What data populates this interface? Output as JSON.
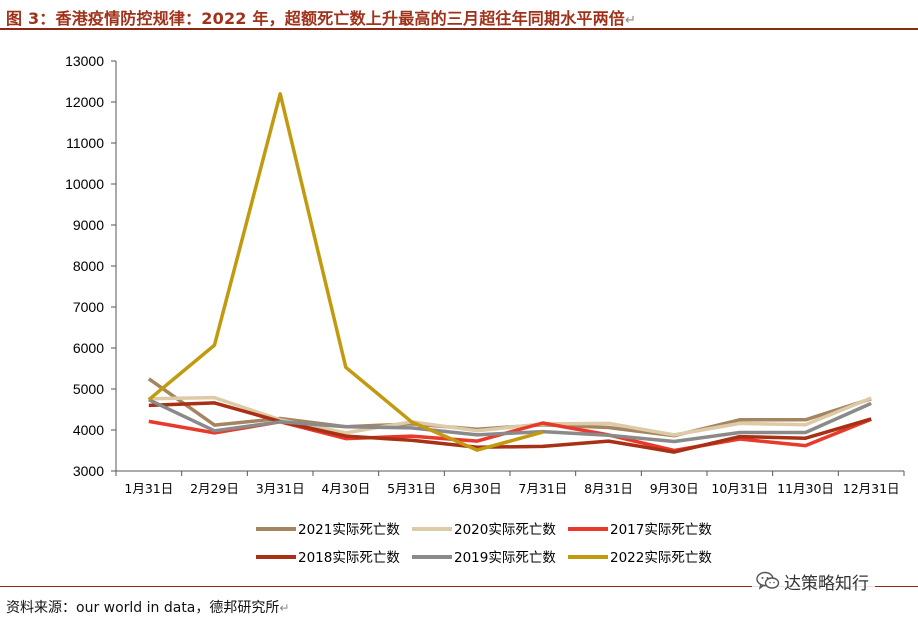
{
  "title": "图 3：香港疫情防控规律：2022 年，超额死亡数上升最高的三月超往年同期水平两倍",
  "title_return_mark": "↵",
  "source": "资料来源：our world in data，德邦研究所",
  "source_return_mark": "↵",
  "watermark": {
    "icon": "wechat-icon",
    "text": "达策略知行"
  },
  "chart_data": {
    "type": "line",
    "categories": [
      "1月31日",
      "2月29日",
      "3月31日",
      "4月30日",
      "5月31日",
      "6月30日",
      "7月31日",
      "8月31日",
      "9月30日",
      "10月31日",
      "11月30日",
      "12月31日"
    ],
    "ylim": [
      3000,
      13000
    ],
    "yticks": [
      3000,
      4000,
      5000,
      6000,
      7000,
      8000,
      9000,
      10000,
      11000,
      12000,
      13000
    ],
    "grid": false,
    "legend_position": "bottom",
    "series": [
      {
        "name": "2021实际死亡数",
        "color": "#a58462",
        "values": [
          5250,
          4120,
          4280,
          4080,
          4150,
          4020,
          4130,
          4060,
          3860,
          4250,
          4250,
          4760
        ]
      },
      {
        "name": "2020实际死亡数",
        "color": "#dccba6",
        "values": [
          4760,
          4790,
          4250,
          3930,
          4200,
          3980,
          4150,
          4160,
          3880,
          4160,
          4130,
          4780
        ]
      },
      {
        "name": "2017实际死亡数",
        "color": "#e8392a",
        "values": [
          4210,
          3930,
          4200,
          3790,
          3850,
          3730,
          4170,
          3880,
          3500,
          3780,
          3620,
          4260
        ]
      },
      {
        "name": "2018实际死亡数",
        "color": "#a83014",
        "values": [
          4600,
          4660,
          4210,
          3850,
          3750,
          3580,
          3600,
          3730,
          3460,
          3840,
          3800,
          4270
        ]
      },
      {
        "name": "2019实际死亡数",
        "color": "#8a8a8a",
        "values": [
          4740,
          3980,
          4200,
          4080,
          4050,
          3880,
          3960,
          3870,
          3720,
          3940,
          3940,
          4650
        ]
      },
      {
        "name": "2022实际死亡数",
        "color": "#c29a10",
        "values": [
          4740,
          6070,
          12200,
          5530,
          4200,
          3510,
          3950,
          null,
          null,
          null,
          null,
          null
        ]
      }
    ]
  }
}
